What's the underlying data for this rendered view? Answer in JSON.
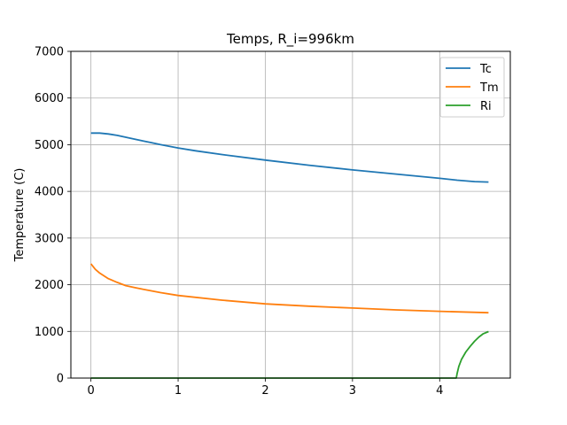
{
  "chart_data": {
    "type": "line",
    "title": "Temps, R_i=996km",
    "xlabel": "",
    "ylabel": "Temperature (C)",
    "xlim": [
      -0.23,
      4.81
    ],
    "ylim": [
      0,
      7000
    ],
    "xticks": [
      0,
      1,
      2,
      3,
      4
    ],
    "yticks": [
      0,
      1000,
      2000,
      3000,
      4000,
      5000,
      6000,
      7000
    ],
    "grid": true,
    "legend": "top-right",
    "series": [
      {
        "name": "Tc",
        "color": "#1f77b4",
        "x": [
          0,
          0.1,
          0.2,
          0.3,
          0.4,
          0.5,
          0.6,
          0.7,
          0.8,
          1.0,
          1.2,
          1.5,
          2.0,
          2.5,
          3.0,
          3.5,
          4.0,
          4.2,
          4.4,
          4.56
        ],
        "y": [
          5250,
          5250,
          5230,
          5200,
          5160,
          5120,
          5080,
          5040,
          5000,
          4930,
          4870,
          4790,
          4670,
          4560,
          4460,
          4370,
          4280,
          4240,
          4210,
          4200
        ]
      },
      {
        "name": "Tm",
        "color": "#ff7f0e",
        "x": [
          0,
          0.05,
          0.1,
          0.2,
          0.3,
          0.4,
          0.5,
          0.6,
          0.8,
          1.0,
          1.5,
          2.0,
          2.5,
          3.0,
          3.5,
          4.0,
          4.56
        ],
        "y": [
          2450,
          2330,
          2250,
          2130,
          2050,
          1980,
          1940,
          1900,
          1830,
          1770,
          1670,
          1590,
          1540,
          1500,
          1460,
          1430,
          1400
        ]
      },
      {
        "name": "Ri",
        "color": "#2ca02c",
        "x": [
          0,
          4.19,
          4.2,
          4.22,
          4.25,
          4.3,
          4.35,
          4.4,
          4.45,
          4.5,
          4.56
        ],
        "y": [
          0,
          0,
          100,
          250,
          400,
          560,
          680,
          790,
          880,
          950,
          996
        ]
      }
    ]
  }
}
